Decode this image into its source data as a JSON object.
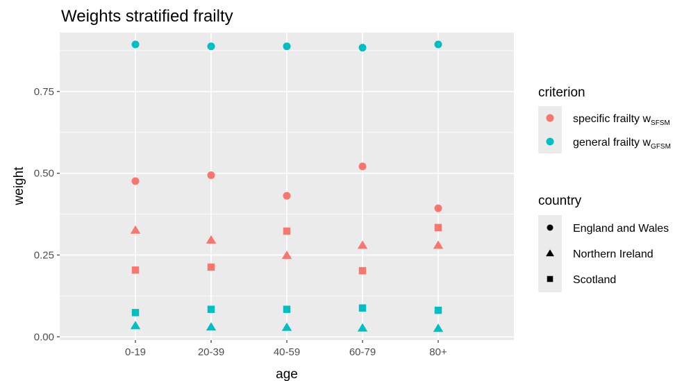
{
  "chart_data": {
    "type": "scatter",
    "title": "Weights stratified frailty",
    "xlabel": "age",
    "ylabel": "weight",
    "categories": [
      "0-19",
      "20-39",
      "40-59",
      "60-79",
      "80+"
    ],
    "yticks": [
      "0.00",
      "0.25",
      "0.50",
      "0.75"
    ],
    "ylim": [
      -0.01,
      0.93
    ],
    "grid": true,
    "series": [
      {
        "criterion": "specific",
        "country": "England and Wales",
        "values": [
          0.476,
          0.494,
          0.431,
          0.521,
          0.393
        ]
      },
      {
        "criterion": "specific",
        "country": "Northern Ireland",
        "values": [
          0.326,
          0.296,
          0.249,
          0.28,
          0.28
        ]
      },
      {
        "criterion": "specific",
        "country": "Scotland",
        "values": [
          0.204,
          0.213,
          0.323,
          0.202,
          0.334
        ]
      },
      {
        "criterion": "general",
        "country": "England and Wales",
        "values": [
          0.894,
          0.888,
          0.888,
          0.884,
          0.894
        ]
      },
      {
        "criterion": "general",
        "country": "Northern Ireland",
        "values": [
          0.034,
          0.03,
          0.029,
          0.027,
          0.026
        ]
      },
      {
        "criterion": "general",
        "country": "Scotland",
        "values": [
          0.074,
          0.084,
          0.084,
          0.088,
          0.081
        ]
      }
    ]
  },
  "legend": {
    "criterion_title": "criterion",
    "criterion_items": [
      {
        "key": "specific",
        "label": "specific frailty w",
        "sub": "SFSM",
        "color": "#f8766d"
      },
      {
        "key": "general",
        "label": "general frailty w",
        "sub": "GFSM",
        "color": "#00bfc4"
      }
    ],
    "country_title": "country",
    "country_items": [
      {
        "key": "England and Wales",
        "label": "England and Wales",
        "shape": "circle"
      },
      {
        "key": "Northern Ireland",
        "label": "Northern Ireland",
        "shape": "triangle"
      },
      {
        "key": "Scotland",
        "label": "Scotland",
        "shape": "square"
      }
    ]
  }
}
